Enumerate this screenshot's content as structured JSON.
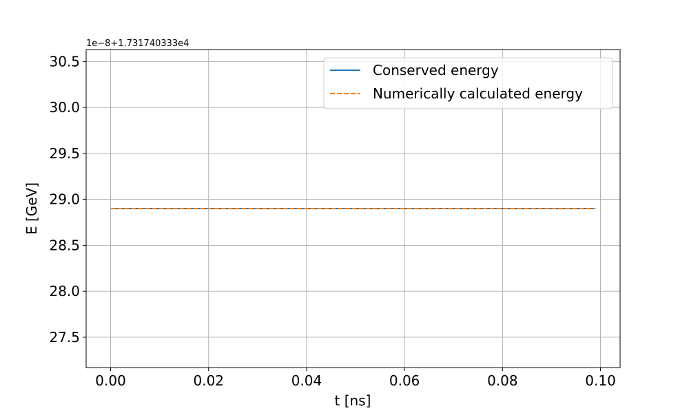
{
  "chart_data": {
    "type": "line",
    "title": "",
    "xlabel": "t [ns]",
    "ylabel": "E [GeV]",
    "y_offset_text": "1e−8+1.731740333e4",
    "xlim": [
      -0.005,
      0.104
    ],
    "ylim": [
      27.17,
      30.63
    ],
    "x_ticks": [
      0.0,
      0.02,
      0.04,
      0.06,
      0.08,
      0.1
    ],
    "x_tick_labels": [
      "0.00",
      "0.02",
      "0.04",
      "0.06",
      "0.08",
      "0.10"
    ],
    "y_ticks": [
      27.5,
      28.0,
      28.5,
      29.0,
      29.5,
      30.0,
      30.5
    ],
    "y_tick_labels": [
      "27.5",
      "28.0",
      "28.5",
      "29.0",
      "29.5",
      "30.0",
      "30.5"
    ],
    "grid": true,
    "legend_position": "top-right",
    "series": [
      {
        "name": "Conserved energy",
        "color": "#1f77b4",
        "style": "solid",
        "x": [
          0.0,
          0.099
        ],
        "y": [
          28.9,
          28.9
        ]
      },
      {
        "name": "Numerically calculated energy",
        "color": "#ff7f0e",
        "style": "dashed",
        "x": [
          0.0,
          0.099
        ],
        "y": [
          28.9,
          28.9
        ]
      }
    ]
  }
}
